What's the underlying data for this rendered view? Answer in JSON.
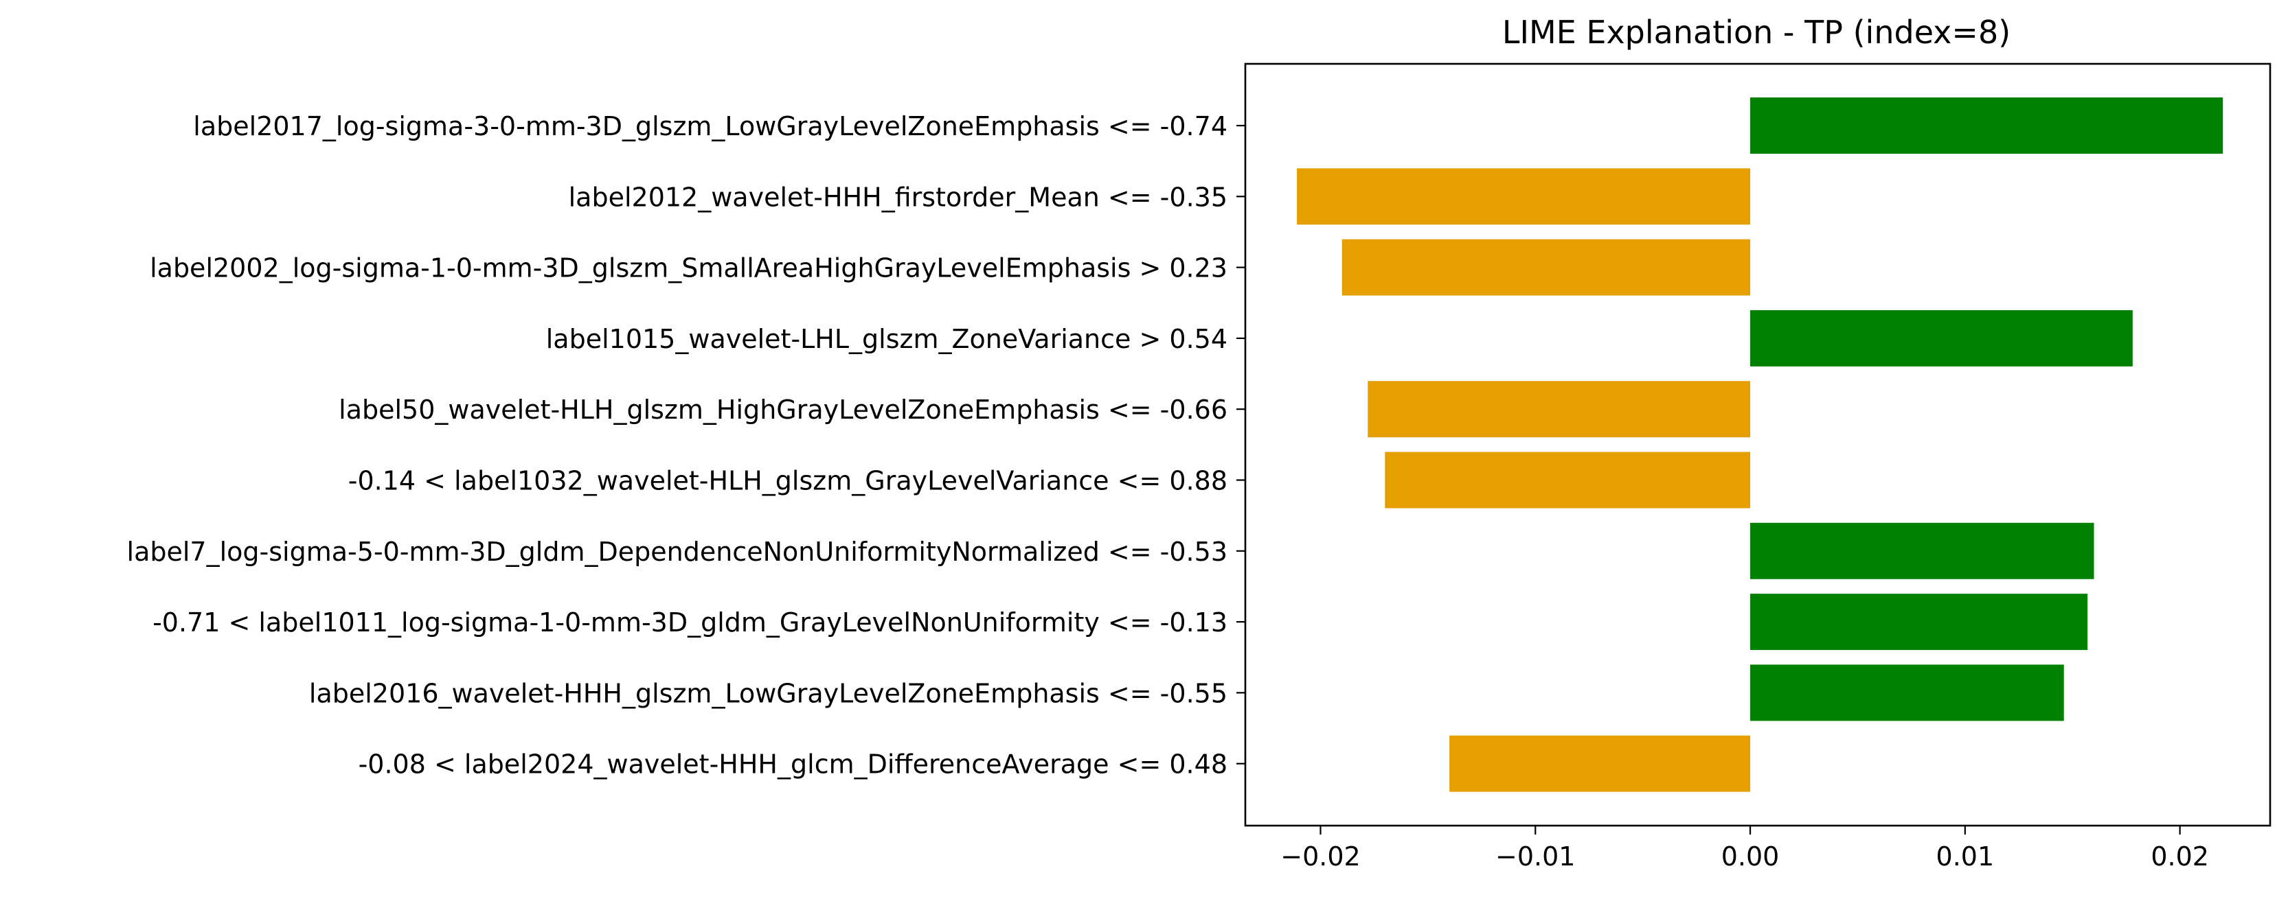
{
  "chart_data": {
    "type": "bar",
    "orientation": "horizontal",
    "title": "LIME Explanation - TP (index=8)",
    "xlabel": "",
    "ylabel": "",
    "xlim": [
      -0.0235,
      0.0242
    ],
    "xticks": [
      -0.02,
      -0.01,
      0.0,
      0.01,
      0.02
    ],
    "xtick_labels": [
      "−0.02",
      "−0.01",
      "0.00",
      "0.01",
      "0.02"
    ],
    "grid": false,
    "legend": "none",
    "colors": {
      "positive": "#008000",
      "negative": "#E69F00"
    },
    "categories": [
      "label2017_log-sigma-3-0-mm-3D_glszm_LowGrayLevelZoneEmphasis <= -0.74",
      "label2012_wavelet-HHH_firstorder_Mean <= -0.35",
      "label2002_log-sigma-1-0-mm-3D_glszm_SmallAreaHighGrayLevelEmphasis > 0.23",
      "label1015_wavelet-LHL_glszm_ZoneVariance > 0.54",
      "label50_wavelet-HLH_glszm_HighGrayLevelZoneEmphasis <= -0.66",
      "-0.14 < label1032_wavelet-HLH_glszm_GrayLevelVariance <= 0.88",
      "label7_log-sigma-5-0-mm-3D_gldm_DependenceNonUniformityNormalized <= -0.53",
      "-0.71 < label1011_log-sigma-1-0-mm-3D_gldm_GrayLevelNonUniformity <= -0.13",
      "label2016_wavelet-HHH_glszm_LowGrayLevelZoneEmphasis <= -0.55",
      "-0.08 < label2024_wavelet-HHH_glcm_DifferenceAverage <= 0.48"
    ],
    "values": [
      0.022,
      -0.0211,
      -0.019,
      0.0178,
      -0.0178,
      -0.017,
      0.016,
      0.0157,
      0.0146,
      -0.014
    ]
  }
}
